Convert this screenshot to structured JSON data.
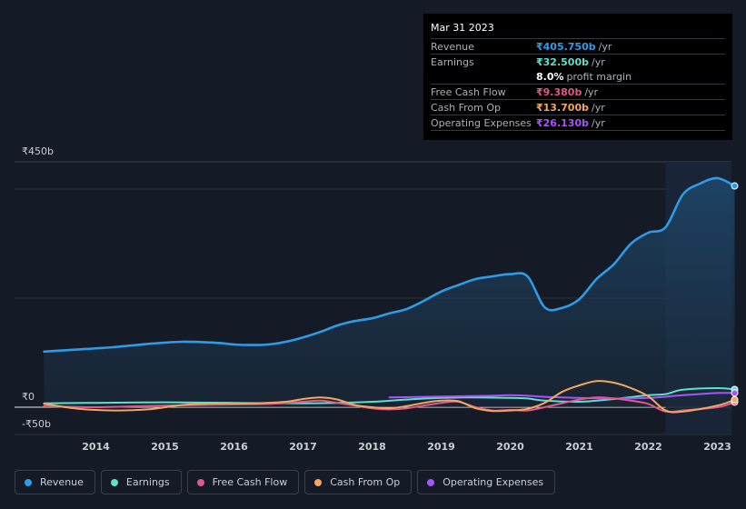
{
  "tooltip": {
    "date": "Mar 31 2023",
    "rows": [
      {
        "label": "Revenue",
        "value": "₹405.750b",
        "unit": "/yr",
        "color": "#2f9be6"
      },
      {
        "label": "Earnings",
        "value": "₹32.500b",
        "unit": "/yr",
        "color": "#5ee0cc"
      },
      {
        "label": "",
        "value": "8.0%",
        "unit": "profit margin",
        "color": "#ffffff"
      },
      {
        "label": "Free Cash Flow",
        "value": "₹9.380b",
        "unit": "/yr",
        "color": "#e0588c"
      },
      {
        "label": "Cash From Op",
        "value": "₹13.700b",
        "unit": "/yr",
        "color": "#f0a860"
      },
      {
        "label": "Operating Expenses",
        "value": "₹26.130b",
        "unit": "/yr",
        "color": "#a855f7"
      }
    ]
  },
  "legend": [
    {
      "label": "Revenue",
      "color": "#2f9be6"
    },
    {
      "label": "Earnings",
      "color": "#5ee0cc"
    },
    {
      "label": "Free Cash Flow",
      "color": "#e0588c"
    },
    {
      "label": "Cash From Op",
      "color": "#f0a860"
    },
    {
      "label": "Operating Expenses",
      "color": "#a855f7"
    }
  ],
  "chart_data": {
    "type": "line",
    "title": "",
    "xlabel": "",
    "ylabel": "",
    "ylim": [
      -50,
      450
    ],
    "y_tick_labels": [
      "₹450b",
      "₹0",
      "-₹50b"
    ],
    "x_tick_labels": [
      "2014",
      "2015",
      "2016",
      "2017",
      "2018",
      "2019",
      "2020",
      "2021",
      "2022",
      "2023"
    ],
    "xlim": [
      2013.2,
      2023.25
    ],
    "highlight_range": [
      2022.25,
      2023.25
    ],
    "series": [
      {
        "name": "Revenue",
        "color": "#2f9be6",
        "area": true,
        "x": [
          2013.25,
          2013.75,
          2014.25,
          2014.75,
          2015.25,
          2015.75,
          2016.0,
          2016.25,
          2016.5,
          2016.75,
          2017.0,
          2017.25,
          2017.5,
          2017.75,
          2018.0,
          2018.25,
          2018.5,
          2018.75,
          2019.0,
          2019.25,
          2019.5,
          2019.75,
          2020.0,
          2020.25,
          2020.5,
          2020.75,
          2021.0,
          2021.25,
          2021.5,
          2021.75,
          2022.0,
          2022.25,
          2022.5,
          2022.75,
          2023.0,
          2023.25
        ],
        "values": [
          102,
          106,
          110,
          116,
          120,
          118,
          115,
          114,
          115,
          120,
          128,
          138,
          150,
          158,
          163,
          172,
          180,
          195,
          212,
          224,
          235,
          240,
          244,
          240,
          183,
          182,
          198,
          235,
          262,
          300,
          320,
          330,
          390,
          410,
          420,
          405.75
        ]
      },
      {
        "name": "Earnings",
        "color": "#5ee0cc",
        "x": [
          2013.25,
          2014.0,
          2015.0,
          2016.0,
          2017.0,
          2017.5,
          2018.0,
          2018.5,
          2019.0,
          2019.5,
          2020.0,
          2020.25,
          2020.5,
          2021.0,
          2021.5,
          2022.0,
          2022.25,
          2022.5,
          2023.0,
          2023.25
        ],
        "values": [
          7,
          8,
          9,
          8,
          7,
          8,
          10,
          14,
          17,
          18,
          17,
          16,
          12,
          10,
          15,
          22,
          24,
          32,
          35,
          32.5
        ]
      },
      {
        "name": "Free Cash Flow",
        "color": "#e0588c",
        "x": [
          2013.25,
          2014.0,
          2015.0,
          2016.0,
          2016.5,
          2017.0,
          2017.25,
          2017.5,
          2018.0,
          2018.25,
          2018.5,
          2019.0,
          2019.25,
          2019.5,
          2019.75,
          2020.0,
          2020.25,
          2020.5,
          2021.0,
          2021.25,
          2021.5,
          2021.75,
          2022.0,
          2022.25,
          2022.5,
          2023.0,
          2023.25
        ],
        "values": [
          2,
          0,
          3,
          5,
          6,
          10,
          12,
          8,
          -2,
          -4,
          -2,
          8,
          10,
          0,
          -6,
          -5,
          -6,
          0,
          14,
          18,
          16,
          12,
          6,
          -8,
          -6,
          0,
          9.38
        ]
      },
      {
        "name": "Cash From Op",
        "color": "#f0a860",
        "x": [
          2013.25,
          2013.75,
          2014.25,
          2014.75,
          2015.25,
          2015.75,
          2016.25,
          2016.75,
          2017.0,
          2017.25,
          2017.5,
          2017.75,
          2018.0,
          2018.25,
          2018.5,
          2018.75,
          2019.0,
          2019.25,
          2019.5,
          2019.75,
          2020.0,
          2020.25,
          2020.5,
          2020.75,
          2021.0,
          2021.25,
          2021.5,
          2021.75,
          2022.0,
          2022.25,
          2022.5,
          2023.0,
          2023.25
        ],
        "values": [
          6,
          -3,
          -6,
          -4,
          4,
          7,
          7,
          10,
          15,
          18,
          14,
          4,
          0,
          -2,
          2,
          8,
          12,
          11,
          -2,
          -7,
          -6,
          -3,
          8,
          28,
          40,
          48,
          45,
          35,
          20,
          -6,
          -8,
          3,
          13.7
        ]
      },
      {
        "name": "Operating Expenses",
        "color": "#a855f7",
        "x": [
          2018.25,
          2018.75,
          2019.25,
          2019.75,
          2020.0,
          2020.25,
          2020.5,
          2020.75,
          2021.0,
          2021.5,
          2022.0,
          2022.5,
          2023.0,
          2023.25
        ],
        "values": [
          18,
          19,
          20,
          21,
          22,
          21,
          19,
          18,
          17,
          16,
          17,
          22,
          26,
          26.13
        ]
      }
    ]
  }
}
